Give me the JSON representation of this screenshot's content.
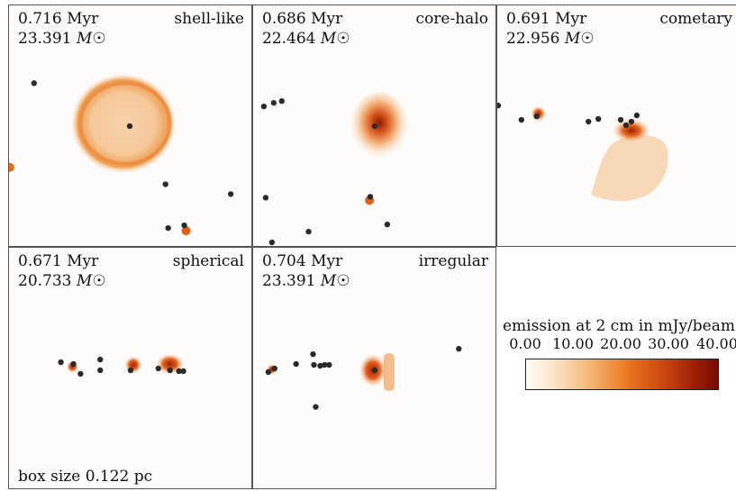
{
  "panels": [
    {
      "time": "0.716 Myr",
      "mass": "23.391",
      "mass_unit": "M",
      "morphology": "shell-like"
    },
    {
      "time": "0.686 Myr",
      "mass": "22.464",
      "mass_unit": "M",
      "morphology": "core-halo"
    },
    {
      "time": "0.691 Myr",
      "mass": "22.956",
      "mass_unit": "M",
      "morphology": "cometary"
    },
    {
      "time": "0.671 Myr",
      "mass": "20.733",
      "mass_unit": "M",
      "morphology": "spherical",
      "note": "box size 0.122 pc"
    },
    {
      "time": "0.704 Myr",
      "mass": "23.391",
      "mass_unit": "M",
      "morphology": "irregular"
    }
  ],
  "colorbar": {
    "title": "emission at 2 cm in mJy/beam",
    "ticks": [
      "0.00",
      "10.00",
      "20.00",
      "30.00",
      "40.00"
    ],
    "colors": [
      "#fffdf8",
      "#f4b26e",
      "#ec7a22",
      "#d04a10",
      "#780a02"
    ]
  }
}
